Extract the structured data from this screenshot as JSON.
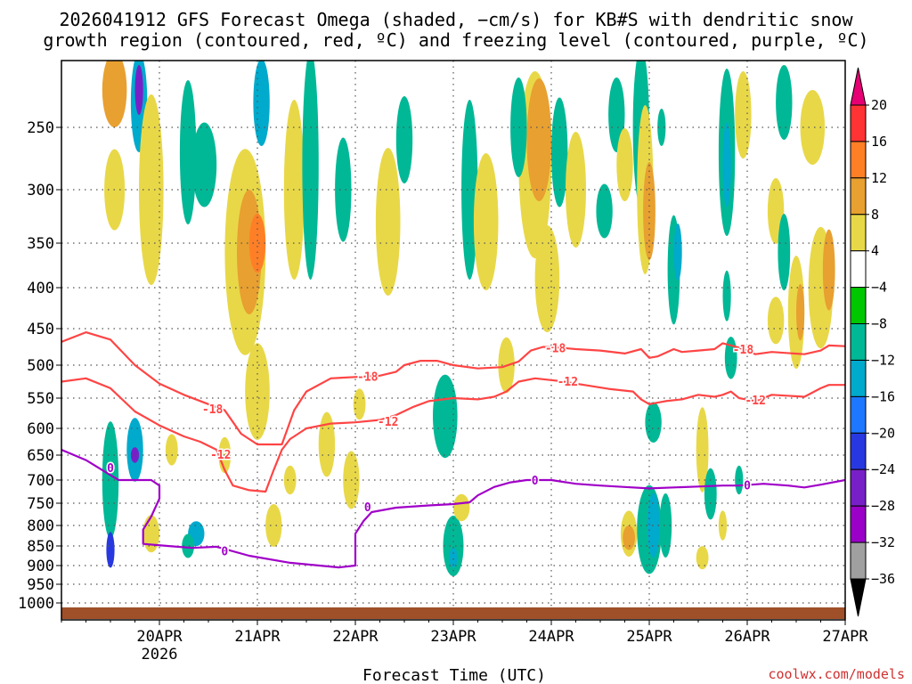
{
  "title_line1": "2026041912 GFS Forecast Omega (shaded, −cm/s) for KB#S with dendritic snow",
  "title_line2": "growth region (contoured, red, ºC) and freezing level (contoured, purple, ºC)",
  "xlabel": "Forecast Time (UTC)",
  "credit": "coolwx.com/models",
  "year_label": "2026",
  "chart_data": {
    "type": "heatmap",
    "title": "2026041912 GFS Forecast Omega (shaded, −cm/s) for KB#S with dendritic snow growth region (contoured, red, ºC) and freezing level (contoured, purple, ºC)",
    "xlabel": "Forecast Time (UTC)",
    "ylabel": "Pressure (hPa)",
    "xlim_hours": [
      -12,
      180
    ],
    "x_ticks": [
      {
        "label": "20APR",
        "hour": 12
      },
      {
        "label": "21APR",
        "hour": 36
      },
      {
        "label": "22APR",
        "hour": 60
      },
      {
        "label": "23APR",
        "hour": 84
      },
      {
        "label": "24APR",
        "hour": 108
      },
      {
        "label": "25APR",
        "hour": 132
      },
      {
        "label": "26APR",
        "hour": 156
      },
      {
        "label": "27APR",
        "hour": 180
      }
    ],
    "y_ticks": [
      250,
      300,
      350,
      400,
      450,
      500,
      550,
      600,
      650,
      700,
      750,
      800,
      850,
      900,
      950,
      1000
    ],
    "colorbar": {
      "levels": [
        "20",
        "16",
        "12",
        "8",
        "4",
        "−4",
        "−8",
        "−12",
        "−16",
        "−20",
        "−24",
        "−28",
        "−32",
        "−36"
      ],
      "colors": [
        "#e60073",
        "#ff3333",
        "#ff7f27",
        "#e8a030",
        "#e8d848",
        "#ffffff",
        "#00c800",
        "#00b896",
        "#00aacc",
        "#1e78ff",
        "#2838e0",
        "#7820c8",
        "#9a00c8",
        "#a0a0a0",
        "#000000"
      ]
    },
    "omega_regions": [
      {
        "h": 1,
        "p": 220,
        "dh": 3,
        "dp": 60,
        "v": 8
      },
      {
        "h": 1,
        "p": 300,
        "dh": 2.5,
        "dp": 70,
        "v": 6
      },
      {
        "h": 0,
        "p": 700,
        "dh": 2,
        "dp": 240,
        "v": -10
      },
      {
        "h": 0,
        "p": 860,
        "dh": 1,
        "dp": 90,
        "v": -22
      },
      {
        "h": 7,
        "p": 230,
        "dh": 2,
        "dp": 80,
        "v": -14
      },
      {
        "h": 7,
        "p": 220,
        "dh": 1,
        "dp": 40,
        "v": -26
      },
      {
        "h": 6,
        "p": 640,
        "dh": 2,
        "dp": 120,
        "v": -12
      },
      {
        "h": 6,
        "p": 650,
        "dh": 1,
        "dp": 30,
        "v": -26
      },
      {
        "h": 10,
        "p": 300,
        "dh": 3,
        "dp": 170,
        "v": 5
      },
      {
        "h": 10,
        "p": 820,
        "dh": 2,
        "dp": 90,
        "v": 6
      },
      {
        "h": 19,
        "p": 270,
        "dh": 2,
        "dp": 120,
        "v": -9
      },
      {
        "h": 21,
        "p": 820,
        "dh": 2,
        "dp": 60,
        "v": -12
      },
      {
        "h": 19,
        "p": 850,
        "dh": 1.5,
        "dp": 60,
        "v": -8
      },
      {
        "h": 23,
        "p": 280,
        "dh": 3,
        "dp": 70,
        "v": -9
      },
      {
        "h": 33,
        "p": 360,
        "dh": 5,
        "dp": 210,
        "v": 6
      },
      {
        "h": 34,
        "p": 360,
        "dh": 3,
        "dp": 130,
        "v": 10
      },
      {
        "h": 36,
        "p": 350,
        "dh": 2,
        "dp": 60,
        "v": 15
      },
      {
        "h": 36,
        "p": 540,
        "dh": 3,
        "dp": 150,
        "v": 6
      },
      {
        "h": 37,
        "p": 230,
        "dh": 2,
        "dp": 70,
        "v": -12
      },
      {
        "h": 40,
        "p": 800,
        "dh": 2,
        "dp": 100,
        "v": 5
      },
      {
        "h": 45,
        "p": 300,
        "dh": 2.5,
        "dp": 160,
        "v": 5
      },
      {
        "h": 49,
        "p": 280,
        "dh": 2,
        "dp": 200,
        "v": -8
      },
      {
        "h": 53,
        "p": 630,
        "dh": 2,
        "dp": 120,
        "v": 5
      },
      {
        "h": 57,
        "p": 300,
        "dh": 2,
        "dp": 90,
        "v": -8
      },
      {
        "h": 59,
        "p": 700,
        "dh": 2,
        "dp": 120,
        "v": 5
      },
      {
        "h": 68,
        "p": 330,
        "dh": 3,
        "dp": 140,
        "v": 5
      },
      {
        "h": 72,
        "p": 260,
        "dh": 2,
        "dp": 70,
        "v": -9
      },
      {
        "h": 82,
        "p": 580,
        "dh": 3,
        "dp": 140,
        "v": -9
      },
      {
        "h": 84,
        "p": 850,
        "dh": 2.5,
        "dp": 150,
        "v": -10
      },
      {
        "h": 84,
        "p": 880,
        "dh": 1,
        "dp": 50,
        "v": -14
      },
      {
        "h": 86,
        "p": 760,
        "dh": 2,
        "dp": 60,
        "v": 6
      },
      {
        "h": 88,
        "p": 300,
        "dh": 2,
        "dp": 160,
        "v": -8
      },
      {
        "h": 92,
        "p": 330,
        "dh": 3,
        "dp": 130,
        "v": 5
      },
      {
        "h": 104,
        "p": 280,
        "dh": 4,
        "dp": 160,
        "v": 6
      },
      {
        "h": 105,
        "p": 260,
        "dh": 3,
        "dp": 100,
        "v": 10
      },
      {
        "h": 107,
        "p": 390,
        "dh": 3,
        "dp": 120,
        "v": 5
      },
      {
        "h": 100,
        "p": 250,
        "dh": 2,
        "dp": 80,
        "v": -8
      },
      {
        "h": 110,
        "p": 270,
        "dh": 2,
        "dp": 90,
        "v": -8
      },
      {
        "h": 114,
        "p": 300,
        "dh": 2.5,
        "dp": 100,
        "v": 5
      },
      {
        "h": 121,
        "p": 320,
        "dh": 2,
        "dp": 50,
        "v": -9
      },
      {
        "h": 124,
        "p": 240,
        "dh": 2,
        "dp": 60,
        "v": -8
      },
      {
        "h": 126,
        "p": 280,
        "dh": 2,
        "dp": 60,
        "v": 5
      },
      {
        "h": 130,
        "p": 250,
        "dh": 2,
        "dp": 130,
        "v": -9
      },
      {
        "h": 131,
        "p": 300,
        "dh": 2,
        "dp": 150,
        "v": 6
      },
      {
        "h": 132,
        "p": 320,
        "dh": 1.5,
        "dp": 90,
        "v": 10
      },
      {
        "h": 133,
        "p": 590,
        "dh": 2,
        "dp": 70,
        "v": -8
      },
      {
        "h": 127,
        "p": 820,
        "dh": 2,
        "dp": 110,
        "v": 6
      },
      {
        "h": 127,
        "p": 830,
        "dh": 1.5,
        "dp": 60,
        "v": 10
      },
      {
        "h": 132,
        "p": 810,
        "dh": 3,
        "dp": 210,
        "v": -9
      },
      {
        "h": 133,
        "p": 800,
        "dh": 1.5,
        "dp": 150,
        "v": -14
      },
      {
        "h": 135,
        "p": 250,
        "dh": 1,
        "dp": 30,
        "v": -8
      },
      {
        "h": 138,
        "p": 380,
        "dh": 1.5,
        "dp": 120,
        "v": -8
      },
      {
        "h": 139,
        "p": 360,
        "dh": 1,
        "dp": 60,
        "v": -14
      },
      {
        "h": 136,
        "p": 800,
        "dh": 1.5,
        "dp": 150,
        "v": -8
      },
      {
        "h": 145,
        "p": 640,
        "dh": 1.5,
        "dp": 160,
        "v": 5
      },
      {
        "h": 145,
        "p": 880,
        "dh": 1.5,
        "dp": 60,
        "v": 6
      },
      {
        "h": 147,
        "p": 730,
        "dh": 1.5,
        "dp": 110,
        "v": -8
      },
      {
        "h": 151,
        "p": 270,
        "dh": 2,
        "dp": 140,
        "v": -9
      },
      {
        "h": 151,
        "p": 280,
        "dh": 1,
        "dp": 70,
        "v": -14
      },
      {
        "h": 151,
        "p": 410,
        "dh": 1,
        "dp": 60,
        "v": -8
      },
      {
        "h": 155,
        "p": 240,
        "dh": 2,
        "dp": 70,
        "v": 5
      },
      {
        "h": 163,
        "p": 320,
        "dh": 2,
        "dp": 60,
        "v": 6
      },
      {
        "h": 168,
        "p": 430,
        "dh": 2,
        "dp": 140,
        "v": 5
      },
      {
        "h": 169,
        "p": 430,
        "dh": 1,
        "dp": 70,
        "v": 10
      },
      {
        "h": 174,
        "p": 400,
        "dh": 3,
        "dp": 140,
        "v": 6
      },
      {
        "h": 172,
        "p": 250,
        "dh": 3,
        "dp": 60,
        "v": 5
      },
      {
        "h": 176,
        "p": 380,
        "dh": 1.5,
        "dp": 90,
        "v": 10
      },
      {
        "h": 165,
        "p": 230,
        "dh": 2,
        "dp": 60,
        "v": -8
      },
      {
        "h": 165,
        "p": 360,
        "dh": 1.5,
        "dp": 80,
        "v": -8
      },
      {
        "h": 150,
        "p": 800,
        "dh": 1,
        "dp": 70,
        "v": 5
      },
      {
        "h": 152,
        "p": 490,
        "dh": 1.5,
        "dp": 60,
        "v": -8
      },
      {
        "h": 154,
        "p": 700,
        "dh": 1,
        "dp": 60,
        "v": -8
      },
      {
        "h": 163,
        "p": 440,
        "dh": 2,
        "dp": 60,
        "v": 5
      },
      {
        "h": 61,
        "p": 560,
        "dh": 1.5,
        "dp": 50,
        "v": 5
      },
      {
        "h": 28,
        "p": 650,
        "dh": 1.5,
        "dp": 70,
        "v": 5
      },
      {
        "h": 15,
        "p": 640,
        "dh": 1.5,
        "dp": 60,
        "v": 5
      },
      {
        "h": 44,
        "p": 700,
        "dh": 1.5,
        "dp": 60,
        "v": 5
      },
      {
        "h": 97,
        "p": 500,
        "dh": 2,
        "dp": 80,
        "v": 5
      }
    ],
    "contour_series": [
      {
        "name": "-18",
        "type": "dendritic_top",
        "color": "#ff4444",
        "points": [
          [
            -12,
            468
          ],
          [
            -6,
            455
          ],
          [
            0,
            465
          ],
          [
            6,
            500
          ],
          [
            12,
            528
          ],
          [
            18,
            545
          ],
          [
            24,
            560
          ],
          [
            28,
            570
          ],
          [
            32,
            610
          ],
          [
            36,
            630
          ],
          [
            42,
            630
          ],
          [
            45,
            570
          ],
          [
            48,
            540
          ],
          [
            54,
            520
          ],
          [
            60,
            518
          ],
          [
            66,
            516
          ],
          [
            70,
            510
          ],
          [
            72,
            500
          ],
          [
            76,
            494
          ],
          [
            80,
            494
          ],
          [
            84,
            500
          ],
          [
            90,
            505
          ],
          [
            96,
            503
          ],
          [
            100,
            495
          ],
          [
            103,
            480
          ],
          [
            106,
            475
          ],
          [
            110,
            476
          ],
          [
            114,
            478
          ],
          [
            120,
            480
          ],
          [
            126,
            484
          ],
          [
            130,
            478
          ],
          [
            132,
            490
          ],
          [
            134,
            488
          ],
          [
            138,
            478
          ],
          [
            140,
            482
          ],
          [
            144,
            480
          ],
          [
            148,
            478
          ],
          [
            150,
            470
          ],
          [
            154,
            476
          ],
          [
            158,
            485
          ],
          [
            162,
            482
          ],
          [
            170,
            485
          ],
          [
            174,
            480
          ],
          [
            176,
            473
          ],
          [
            180,
            474
          ]
        ]
      },
      {
        "name": "-12",
        "type": "dendritic_bottom",
        "color": "#ff4444",
        "points": [
          [
            -12,
            525
          ],
          [
            -6,
            520
          ],
          [
            0,
            535
          ],
          [
            6,
            572
          ],
          [
            12,
            595
          ],
          [
            18,
            615
          ],
          [
            22,
            625
          ],
          [
            26,
            640
          ],
          [
            28,
            680
          ],
          [
            30,
            712
          ],
          [
            34,
            722
          ],
          [
            38,
            725
          ],
          [
            40,
            680
          ],
          [
            42,
            640
          ],
          [
            44,
            620
          ],
          [
            48,
            600
          ],
          [
            54,
            592
          ],
          [
            60,
            590
          ],
          [
            66,
            586
          ],
          [
            70,
            578
          ],
          [
            74,
            565
          ],
          [
            78,
            555
          ],
          [
            84,
            550
          ],
          [
            90,
            552
          ],
          [
            94,
            548
          ],
          [
            97,
            540
          ],
          [
            100,
            525
          ],
          [
            104,
            520
          ],
          [
            110,
            524
          ],
          [
            116,
            530
          ],
          [
            122,
            536
          ],
          [
            128,
            540
          ],
          [
            130,
            552
          ],
          [
            132,
            560
          ],
          [
            136,
            555
          ],
          [
            140,
            552
          ],
          [
            144,
            545
          ],
          [
            148,
            548
          ],
          [
            150,
            545
          ],
          [
            152,
            540
          ],
          [
            154,
            550
          ],
          [
            158,
            555
          ],
          [
            162,
            545
          ],
          [
            170,
            548
          ],
          [
            174,
            535
          ],
          [
            176,
            530
          ],
          [
            180,
            530
          ]
        ]
      },
      {
        "name": "0",
        "type": "freezing_level",
        "color": "#a000c8",
        "points": [
          [
            -12,
            640
          ],
          [
            -6,
            660
          ],
          [
            0,
            690
          ],
          [
            2,
            700
          ],
          [
            6,
            700
          ],
          [
            10,
            700
          ],
          [
            12,
            712
          ],
          [
            12,
            740
          ],
          [
            10,
            780
          ],
          [
            8,
            810
          ],
          [
            8,
            845
          ],
          [
            14,
            850
          ],
          [
            20,
            855
          ],
          [
            26,
            852
          ],
          [
            34,
            875
          ],
          [
            44,
            893
          ],
          [
            56,
            905
          ],
          [
            60,
            900
          ],
          [
            60,
            858
          ],
          [
            60,
            820
          ],
          [
            62,
            790
          ],
          [
            64,
            770
          ],
          [
            70,
            760
          ],
          [
            78,
            755
          ],
          [
            84,
            752
          ],
          [
            88,
            748
          ],
          [
            90,
            733
          ],
          [
            94,
            715
          ],
          [
            98,
            705
          ],
          [
            102,
            700
          ],
          [
            108,
            700
          ],
          [
            114,
            708
          ],
          [
            120,
            712
          ],
          [
            126,
            715
          ],
          [
            132,
            718
          ],
          [
            138,
            716
          ],
          [
            144,
            714
          ],
          [
            150,
            712
          ],
          [
            154,
            712
          ],
          [
            160,
            708
          ],
          [
            166,
            712
          ],
          [
            170,
            716
          ],
          [
            174,
            710
          ],
          [
            180,
            700
          ]
        ]
      }
    ],
    "contour_labels": [
      {
        "text": "-18",
        "h": 25,
        "p": 568,
        "color": "#ff4444"
      },
      {
        "text": "-18",
        "h": 63,
        "p": 517,
        "color": "#ff4444"
      },
      {
        "text": "-18",
        "h": 109,
        "p": 476,
        "color": "#ff4444"
      },
      {
        "text": "-18",
        "h": 155,
        "p": 478,
        "color": "#ff4444"
      },
      {
        "text": "-12",
        "h": 27,
        "p": 648,
        "color": "#ff4444"
      },
      {
        "text": "-12",
        "h": 68,
        "p": 588,
        "color": "#ff4444"
      },
      {
        "text": "-12",
        "h": 112,
        "p": 524,
        "color": "#ff4444"
      },
      {
        "text": "-12",
        "h": 158,
        "p": 553,
        "color": "#ff4444"
      },
      {
        "text": "0",
        "h": 0,
        "p": 675,
        "color": "#a000c8"
      },
      {
        "text": "0",
        "h": 28,
        "p": 862,
        "color": "#a000c8"
      },
      {
        "text": "0",
        "h": 63,
        "p": 758,
        "color": "#a000c8"
      },
      {
        "text": "0",
        "h": 104,
        "p": 700,
        "color": "#a000c8"
      },
      {
        "text": "0",
        "h": 156,
        "p": 711,
        "color": "#a000c8"
      }
    ]
  }
}
